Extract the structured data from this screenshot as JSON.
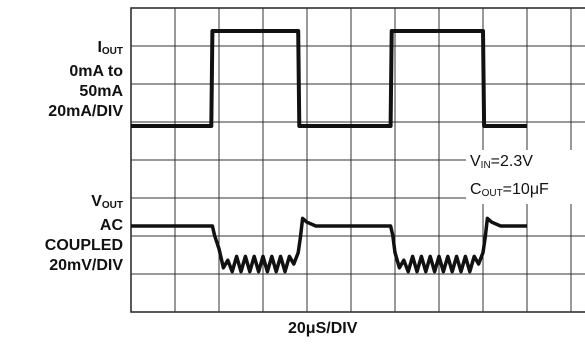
{
  "chart_data": {
    "type": "line",
    "title": "",
    "xlabel": "20μS/DIV",
    "divisions": {
      "x": 10,
      "y": 8
    },
    "grid": true,
    "x_unit": "μs",
    "iout_label": {
      "name": "I",
      "sub": "OUT",
      "lines": [
        "0mA to",
        "50mA",
        "20mA/DIV"
      ]
    },
    "vout_label": {
      "name": "V",
      "sub": "OUT",
      "lines": [
        "AC",
        "COUPLED",
        "20mV/DIV"
      ]
    },
    "conditions": [
      {
        "name": "V",
        "sub": "IN",
        "value": "=2.3V"
      },
      {
        "name": "C",
        "sub": "OUT",
        "value": "=10μF"
      }
    ],
    "series": [
      {
        "trace": "iout",
        "x": [
          0,
          36.5,
          37,
          76,
          76.5,
          118,
          118.5,
          160,
          160.5,
          180
        ],
        "y": [
          0,
          0,
          50,
          50,
          0,
          0,
          50,
          50,
          0,
          0
        ]
      },
      {
        "trace": "vout",
        "x": [
          0,
          36,
          37,
          38,
          40,
          42,
          44,
          46,
          48,
          50,
          52,
          54,
          56,
          58,
          60,
          62,
          64,
          66,
          68,
          70,
          72,
          74,
          76,
          77,
          78,
          80,
          84,
          118,
          119,
          120,
          122,
          124,
          126,
          128,
          130,
          132,
          134,
          136,
          138,
          140,
          142,
          144,
          146,
          148,
          150,
          152,
          154,
          156,
          158,
          160,
          161,
          162,
          164,
          168,
          180
        ],
        "y": [
          0,
          0,
          0,
          -5,
          -12,
          -22,
          -18,
          -24,
          -16,
          -24,
          -16,
          -24,
          -16,
          -24,
          -16,
          -24,
          -16,
          -24,
          -16,
          -24,
          -16,
          -20,
          -14,
          -6,
          4,
          2,
          0,
          0,
          -5,
          -14,
          -22,
          -18,
          -24,
          -16,
          -24,
          -16,
          -24,
          -16,
          -24,
          -16,
          -24,
          -16,
          -24,
          -16,
          -24,
          -16,
          -24,
          -16,
          -20,
          -14,
          -6,
          4,
          2,
          0,
          0
        ]
      }
    ]
  }
}
